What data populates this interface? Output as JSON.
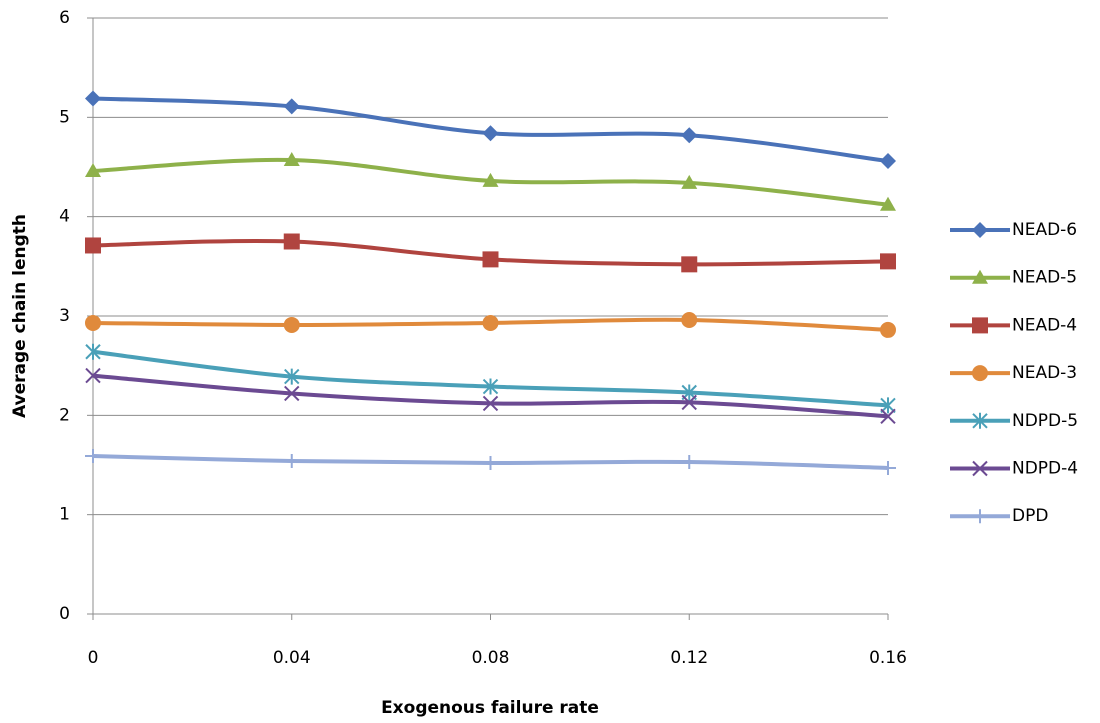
{
  "chart_data": {
    "type": "line",
    "x_label": "Exogenous failure rate",
    "y_label": "Average chain length",
    "x": [
      0,
      0.04,
      0.08,
      0.12,
      0.16
    ],
    "xlim": [
      0,
      0.16
    ],
    "xticks": [
      0,
      0.04,
      0.08,
      0.12,
      0.16
    ],
    "ylim": [
      0,
      6
    ],
    "yticks": [
      0,
      1,
      2,
      3,
      4,
      5,
      6
    ],
    "grid": true,
    "smooth": true,
    "legend": "right",
    "series": [
      {
        "name": "NEAD-6",
        "color": "#4a72b8",
        "marker": "diamond",
        "values": [
          5.19,
          5.11,
          4.84,
          4.82,
          4.56
        ]
      },
      {
        "name": "NEAD-5",
        "color": "#8eb14a",
        "marker": "triangle",
        "values": [
          4.46,
          4.57,
          4.36,
          4.34,
          4.12
        ]
      },
      {
        "name": "NEAD-4",
        "color": "#b0443f",
        "marker": "square",
        "values": [
          3.71,
          3.75,
          3.57,
          3.52,
          3.55
        ]
      },
      {
        "name": "NEAD-3",
        "color": "#e08a3c",
        "marker": "circle",
        "values": [
          2.93,
          2.91,
          2.93,
          2.96,
          2.86
        ]
      },
      {
        "name": "NDPD-5",
        "color": "#4aa0b8",
        "marker": "asterisk",
        "values": [
          2.64,
          2.39,
          2.29,
          2.23,
          2.1
        ]
      },
      {
        "name": "NDPD-4",
        "color": "#6b4a92",
        "marker": "x",
        "values": [
          2.4,
          2.22,
          2.12,
          2.13,
          1.99
        ]
      },
      {
        "name": "DPD",
        "color": "#94a9d8",
        "marker": "plus",
        "values": [
          1.59,
          1.54,
          1.52,
          1.53,
          1.47
        ]
      }
    ]
  }
}
